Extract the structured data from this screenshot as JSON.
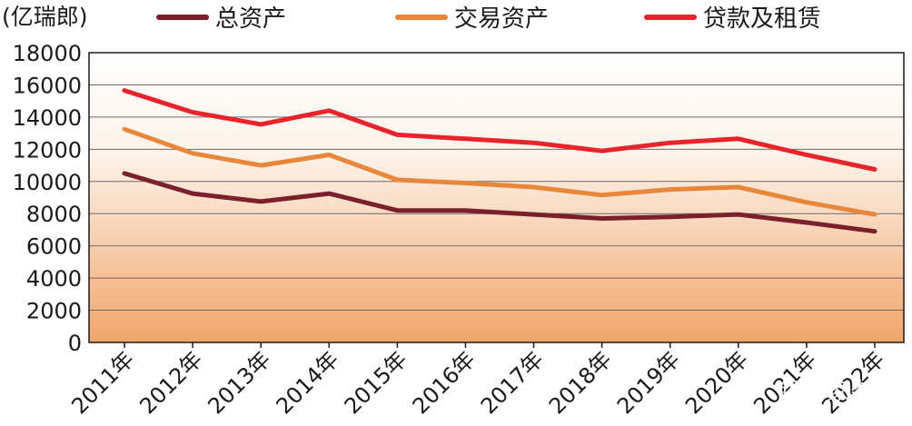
{
  "chart_data": {
    "type": "line",
    "unit_label": "(亿瑞郎)",
    "categories": [
      "2011年",
      "2012年",
      "2013年",
      "2014年",
      "2015年",
      "2016年",
      "2017年",
      "2018年",
      "2019年",
      "2020年",
      "2021年",
      "2022年"
    ],
    "y_ticks": [
      "0",
      "2000",
      "4000",
      "6000",
      "8000",
      "10000",
      "12000",
      "14000",
      "16000",
      "18000"
    ],
    "ylim": [
      0,
      18000
    ],
    "grid": true,
    "legend_position": "top",
    "series": [
      {
        "name": "总资产",
        "color": "#7a1f2b",
        "values": [
          10500,
          9250,
          8750,
          9250,
          8200,
          8200,
          7950,
          7700,
          7800,
          7950,
          7450,
          6900
        ]
      },
      {
        "name": "交易资产",
        "color": "#e8873a",
        "values": [
          13250,
          11750,
          11000,
          11650,
          10100,
          9900,
          9650,
          9150,
          9500,
          9650,
          8700,
          7950
        ]
      },
      {
        "name": "贷款及租赁",
        "color": "#e8242a",
        "values": [
          15650,
          14300,
          13550,
          14400,
          12900,
          12650,
          12400,
          11900,
          12400,
          12650,
          11650,
          10750
        ]
      }
    ]
  },
  "watermark": "银行家杂志"
}
